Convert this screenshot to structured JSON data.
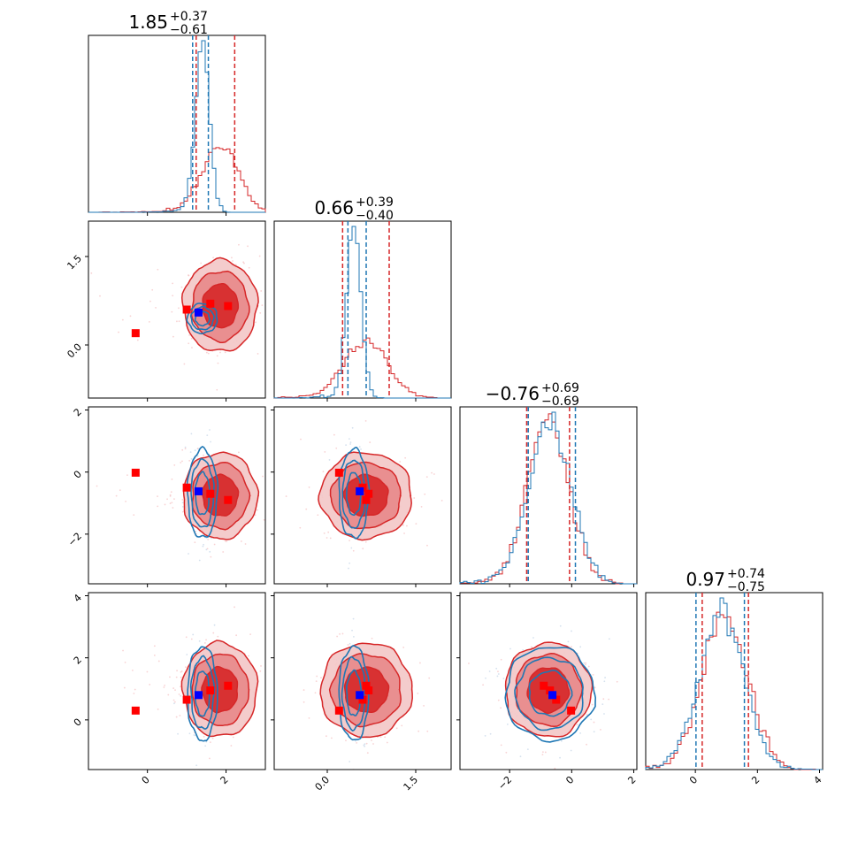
{
  "figure": {
    "type": "corner",
    "n_params": 4,
    "colors": {
      "red": "#d62728",
      "blue": "#1f77b4",
      "truth_blue": "#0000ff",
      "truth_red": "#ff0000"
    }
  },
  "chart_data": {
    "type": "corner",
    "params": [
      {
        "range": [
          -1.5,
          3.0
        ],
        "ticks": [
          0,
          2
        ],
        "tick_labels": [
          "0",
          "2"
        ],
        "title": {
          "median": "1.85",
          "plus": "+0.37",
          "minus": "−0.61"
        },
        "red_hist": {
          "mean": 1.85,
          "sd": 0.45,
          "quantiles": [
            1.24,
            2.22
          ]
        },
        "blue_hist": {
          "mean": 1.4,
          "sd": 0.18,
          "quantiles": [
            1.15,
            1.55
          ]
        }
      },
      {
        "range": [
          -0.9,
          2.1
        ],
        "ticks": [
          0.0,
          1.5
        ],
        "tick_labels": [
          "0.0",
          "1.5"
        ],
        "title": {
          "median": "0.66",
          "plus": "+0.39",
          "minus": "−0.40"
        },
        "red_hist": {
          "mean": 0.66,
          "sd": 0.37,
          "quantiles": [
            0.26,
            1.05
          ]
        },
        "blue_hist": {
          "mean": 0.45,
          "sd": 0.12,
          "quantiles": [
            0.35,
            0.66
          ]
        }
      },
      {
        "range": [
          -3.6,
          2.1
        ],
        "ticks": [
          -2,
          0,
          2
        ],
        "tick_labels": [
          "−2",
          "0",
          "2"
        ],
        "title": {
          "median": "−0.76",
          "plus": "+0.69",
          "minus": "−0.69"
        },
        "red_hist": {
          "mean": -0.76,
          "sd": 0.66,
          "quantiles": [
            -1.45,
            -0.07
          ]
        },
        "blue_hist": {
          "mean": -0.7,
          "sd": 0.68,
          "quantiles": [
            -1.4,
            0.12
          ]
        }
      },
      {
        "range": [
          -1.6,
          4.1
        ],
        "ticks": [
          0,
          2,
          4
        ],
        "tick_labels": [
          "0",
          "2",
          "4"
        ],
        "title": {
          "median": "0.97",
          "plus": "+0.74",
          "minus": "−0.75"
        },
        "red_hist": {
          "mean": 0.97,
          "sd": 0.72,
          "quantiles": [
            0.22,
            1.71
          ]
        },
        "blue_hist": {
          "mean": 0.85,
          "sd": 0.72,
          "quantiles": [
            0.02,
            1.58
          ]
        }
      }
    ],
    "y_tick_rows": {
      "1": {
        "ticks": [
          0.0,
          1.5
        ],
        "tick_labels": [
          "0.0",
          "1.5"
        ]
      },
      "2": {
        "ticks": [
          -2,
          0,
          2
        ],
        "tick_labels": [
          "−2",
          "0",
          "2"
        ]
      },
      "3": {
        "ticks": [
          0,
          2,
          4
        ],
        "tick_labels": [
          "0",
          "2",
          "4"
        ]
      }
    },
    "red_points": [
      [
        1.0,
        0.6,
        -0.5,
        0.65
      ],
      [
        1.6,
        0.7,
        -0.7,
        0.95
      ],
      [
        2.05,
        0.66,
        -0.9,
        1.1
      ],
      [
        -0.3,
        0.2,
        -0.02,
        0.3
      ]
    ],
    "blue_point": [
      1.3,
      0.55,
      -0.62,
      0.8
    ],
    "red_contours": {
      "center": [
        1.85,
        0.66,
        -0.76,
        0.97
      ],
      "sd": [
        0.45,
        0.37,
        0.66,
        0.72
      ]
    },
    "blue_contours": {
      "center": [
        1.4,
        0.45,
        -0.7,
        0.85
      ],
      "sd": [
        0.18,
        0.12,
        0.68,
        0.72
      ]
    }
  }
}
